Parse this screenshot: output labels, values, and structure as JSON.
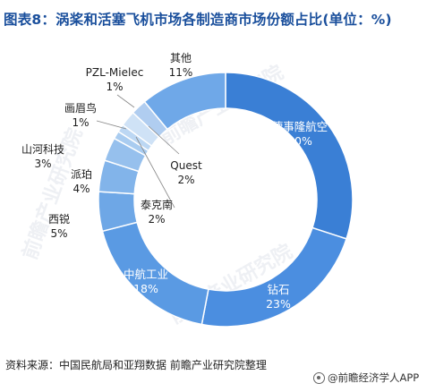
{
  "title": "图表8：涡桨和活塞飞机市场各制造商市场份额占比(单位：%)",
  "source": "资料来源：中国民航局和亚翔数据 前瞻产业研究院整理",
  "brand": "@前瞻经济学人APP",
  "watermarks": [
    "前瞻产业研究院",
    "前瞻产业研究院",
    "前瞻产业研究院"
  ],
  "chart_data": {
    "type": "pie",
    "donut": true,
    "title": "",
    "categories": [
      "德事隆航空",
      "钻石",
      "中航工业",
      "西锐",
      "派珀",
      "山河科技",
      "画眉鸟",
      "PZL-Mielec",
      "Quest",
      "泰克南",
      "其他"
    ],
    "series": [
      {
        "values": [
          30,
          23,
          18,
          5,
          4,
          3,
          1,
          1,
          2,
          2,
          11
        ],
        "value_labels": [
          "30%",
          "23%",
          "18%",
          "5%",
          "4%",
          "3%",
          "1%",
          "1%",
          "2%",
          "2%",
          "11%"
        ]
      }
    ],
    "order_used_for_drawing": [
      0,
      1,
      2,
      3,
      4,
      5,
      6,
      7,
      8,
      9,
      10
    ],
    "colors": [
      "#3a7fd5",
      "#4b8ee0",
      "#5a9ae3",
      "#6ea7e6",
      "#82b4ea",
      "#96c0ed",
      "#a9ccf0",
      "#bcd7f3",
      "#cfe2f6",
      "#b0cdf0",
      "#6fa8e8"
    ]
  }
}
